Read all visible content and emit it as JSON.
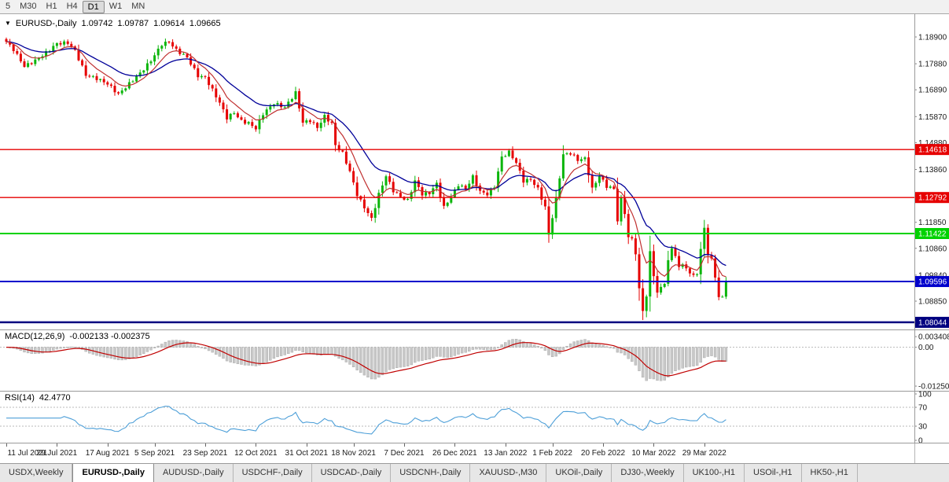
{
  "toolbar": {
    "timeframes": [
      "5",
      "M30",
      "H1",
      "H4",
      "D1",
      "W1",
      "MN"
    ],
    "active_timeframe": "D1"
  },
  "main_chart": {
    "symbol_label": "EURUSD-,Daily",
    "ohlc": {
      "open": "1.09742",
      "high": "1.09787",
      "low": "1.09614",
      "close": "1.09665"
    },
    "price_axis_labels": [
      "1.18900",
      "1.17880",
      "1.16890",
      "1.15870",
      "1.14880",
      "1.13860",
      "1.11850",
      "1.10860",
      "1.09840",
      "1.08850"
    ],
    "hlines": [
      {
        "price": 1.14618,
        "label": "1.14618",
        "color": "#e60000",
        "thickness": 1.4
      },
      {
        "price": 1.12792,
        "label": "1.12792",
        "color": "#e60000",
        "thickness": 1.4
      },
      {
        "price": 1.11422,
        "label": "1.11422",
        "color": "#00d200",
        "thickness": 2
      },
      {
        "price": 1.09596,
        "label": "1.09596",
        "color": "#0000cc",
        "thickness": 2
      },
      {
        "price": 1.08044,
        "label": "1.08044",
        "color": "#000080",
        "thickness": 2.5
      }
    ],
    "date_axis": [
      {
        "text": "11 Jul 2021",
        "candle": 0
      },
      {
        "text": "29 Jul 2021",
        "candle": 14
      },
      {
        "text": "17 Aug 2021",
        "candle": 28
      },
      {
        "text": "5 Sep 2021",
        "candle": 41
      },
      {
        "text": "23 Sep 2021",
        "candle": 55
      },
      {
        "text": "12 Oct 2021",
        "candle": 69
      },
      {
        "text": "31 Oct 2021",
        "candle": 83
      },
      {
        "text": "18 Nov 2021",
        "candle": 96
      },
      {
        "text": "7 Dec 2021",
        "candle": 110
      },
      {
        "text": "26 Dec 2021",
        "candle": 124
      },
      {
        "text": "13 Jan 2022",
        "candle": 138
      },
      {
        "text": "1 Feb 2022",
        "candle": 151
      },
      {
        "text": "20 Feb 2022",
        "candle": 165
      },
      {
        "text": "10 Mar 2022",
        "candle": 179
      },
      {
        "text": "29 Mar 2022",
        "candle": 193
      }
    ]
  },
  "chart_data": {
    "type": "candlestick",
    "symbol": "EURUSD",
    "timeframe": "Daily",
    "num_candles": 200,
    "visible_price_range": [
      1.0786,
      1.1977
    ],
    "close_path": [
      [
        0,
        1.1872
      ],
      [
        2,
        1.1842
      ],
      [
        5,
        1.1778
      ],
      [
        8,
        1.18
      ],
      [
        11,
        1.183
      ],
      [
        14,
        1.1865
      ],
      [
        17,
        1.1868
      ],
      [
        19,
        1.1838
      ],
      [
        22,
        1.1745
      ],
      [
        25,
        1.1732
      ],
      [
        28,
        1.1712
      ],
      [
        31,
        1.1672
      ],
      [
        34,
        1.1712
      ],
      [
        37,
        1.1752
      ],
      [
        40,
        1.18
      ],
      [
        43,
        1.1862
      ],
      [
        45,
        1.1872
      ],
      [
        47,
        1.184
      ],
      [
        50,
        1.1812
      ],
      [
        53,
        1.1742
      ],
      [
        55,
        1.1736
      ],
      [
        57,
        1.1688
      ],
      [
        59,
        1.164
      ],
      [
        61,
        1.1582
      ],
      [
        63,
        1.1602
      ],
      [
        65,
        1.157
      ],
      [
        67,
        1.1562
      ],
      [
        69,
        1.1542
      ],
      [
        71,
        1.1598
      ],
      [
        74,
        1.1638
      ],
      [
        77,
        1.1622
      ],
      [
        80,
        1.1678
      ],
      [
        82,
        1.1565
      ],
      [
        84,
        1.1572
      ],
      [
        86,
        1.1545
      ],
      [
        88,
        1.1588
      ],
      [
        90,
        1.156
      ],
      [
        91,
        1.1478
      ],
      [
        93,
        1.1448
      ],
      [
        95,
        1.1378
      ],
      [
        97,
        1.129
      ],
      [
        99,
        1.1242
      ],
      [
        101,
        1.1198
      ],
      [
        103,
        1.1292
      ],
      [
        105,
        1.1362
      ],
      [
        107,
        1.1305
      ],
      [
        109,
        1.1282
      ],
      [
        111,
        1.1268
      ],
      [
        113,
        1.1342
      ],
      [
        115,
        1.1292
      ],
      [
        117,
        1.1296
      ],
      [
        119,
        1.1332
      ],
      [
        121,
        1.1242
      ],
      [
        123,
        1.1282
      ],
      [
        125,
        1.1328
      ],
      [
        127,
        1.1312
      ],
      [
        129,
        1.1358
      ],
      [
        131,
        1.1302
      ],
      [
        133,
        1.1292
      ],
      [
        135,
        1.1322
      ],
      [
        137,
        1.1432
      ],
      [
        139,
        1.1452
      ],
      [
        141,
        1.1412
      ],
      [
        143,
        1.1342
      ],
      [
        145,
        1.1348
      ],
      [
        147,
        1.1312
      ],
      [
        149,
        1.1242
      ],
      [
        150,
        1.1138
      ],
      [
        152,
        1.1272
      ],
      [
        154,
        1.1442
      ],
      [
        156,
        1.1448
      ],
      [
        158,
        1.1422
      ],
      [
        160,
        1.1428
      ],
      [
        162,
        1.1312
      ],
      [
        164,
        1.1362
      ],
      [
        166,
        1.1322
      ],
      [
        168,
        1.1312
      ],
      [
        169,
        1.1192
      ],
      [
        170,
        1.1272
      ],
      [
        171,
        1.1222
      ],
      [
        172,
        1.1126
      ],
      [
        173,
        1.1122
      ],
      [
        174,
        1.1068
      ],
      [
        175,
        1.0928
      ],
      [
        176,
        1.0852
      ],
      [
        177,
        1.0902
      ],
      [
        178,
        1.1072
      ],
      [
        179,
        1.0986
      ],
      [
        180,
        1.0912
      ],
      [
        181,
        1.0942
      ],
      [
        182,
        1.0952
      ],
      [
        183,
        1.1036
      ],
      [
        184,
        1.1092
      ],
      [
        185,
        1.1052
      ],
      [
        186,
        1.1016
      ],
      [
        187,
        1.1028
      ],
      [
        188,
        1.1004
      ],
      [
        189,
        1.0996
      ],
      [
        190,
        1.0982
      ],
      [
        191,
        1.0986
      ],
      [
        192,
        1.1088
      ],
      [
        193,
        1.1158
      ],
      [
        194,
        1.1066
      ],
      [
        195,
        1.1046
      ],
      [
        196,
        1.0972
      ],
      [
        197,
        1.0906
      ],
      [
        198,
        1.0896
      ],
      [
        199,
        1.0966
      ]
    ]
  },
  "macd_panel": {
    "name": "MACD(12,26,9)",
    "values_text": "-0.002133 -0.002375",
    "axis_labels": [
      "0.003408",
      "0.00",
      "-0.012508"
    ]
  },
  "rsi_panel": {
    "name": "RSI(14)",
    "value_text": "42.4770",
    "axis_labels": [
      "100",
      "70",
      "30",
      "0"
    ],
    "levels": [
      70,
      30
    ]
  },
  "tabs": [
    {
      "label": "USDX,Weekly",
      "active": false
    },
    {
      "label": "EURUSD-,Daily",
      "active": true
    },
    {
      "label": "AUDUSD-,Daily",
      "active": false
    },
    {
      "label": "USDCHF-,Daily",
      "active": false
    },
    {
      "label": "USDCAD-,Daily",
      "active": false
    },
    {
      "label": "USDCNH-,Daily",
      "active": false
    },
    {
      "label": "XAUUSD-,M30",
      "active": false
    },
    {
      "label": "UKOil-,Daily",
      "active": false
    },
    {
      "label": "DJ30-,Weekly",
      "active": false
    },
    {
      "label": "UK100-,H1",
      "active": false
    },
    {
      "label": "USOil-,H1",
      "active": false
    },
    {
      "label": "HK50-,H1",
      "active": false
    }
  ],
  "colors": {
    "bull_candle": "#0cb50c",
    "bear_candle": "#e60000",
    "ma_fast": "#c03030",
    "ma_slow": "#000099",
    "macd_histogram": "#c8c8c8",
    "macd_signal": "#c00000",
    "rsi_line": "#4d9fd8",
    "level_dash": "#b9b9b9",
    "panel_border": "#9a9a9a",
    "axis_text": "#1a1a1a"
  }
}
